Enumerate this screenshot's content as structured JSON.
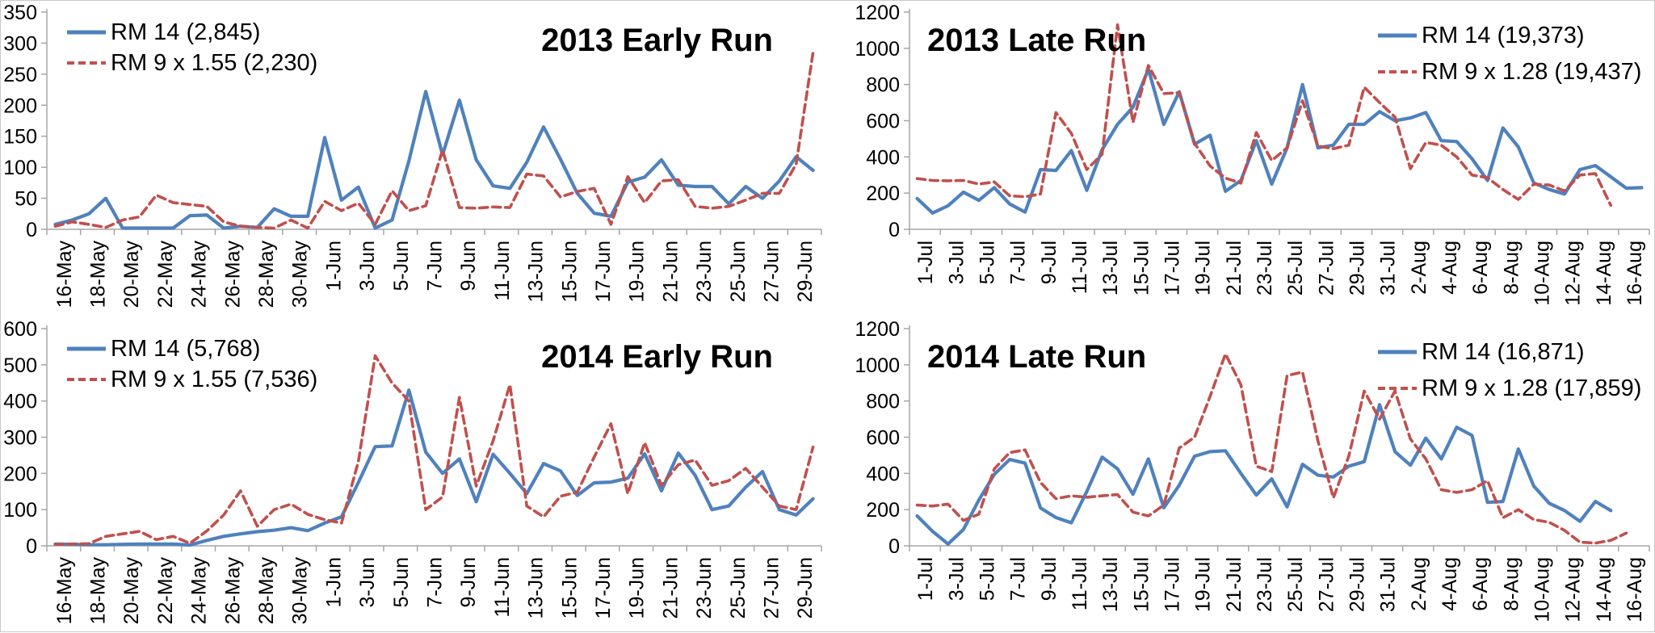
{
  "colors": {
    "rm14": "#4F81BD",
    "rm9": "#C0504D",
    "axis": "#A6A6A6",
    "text": "#000000",
    "background": "#FFFFFF",
    "page_border": "#C9C9C9"
  },
  "chart_data": [
    {
      "id": "chart-2013-early",
      "type": "line",
      "title": "2013 Early Run",
      "title_position": "top-right",
      "legend_position": "top-left",
      "grid": "off",
      "y_axis": {
        "min": 0,
        "max": 350,
        "step": 50
      },
      "x_tick_interval": 2,
      "x": [
        "16-May",
        "17-May",
        "18-May",
        "19-May",
        "20-May",
        "21-May",
        "22-May",
        "23-May",
        "24-May",
        "25-May",
        "26-May",
        "27-May",
        "28-May",
        "29-May",
        "30-May",
        "31-May",
        "1-Jun",
        "2-Jun",
        "3-Jun",
        "4-Jun",
        "5-Jun",
        "6-Jun",
        "7-Jun",
        "8-Jun",
        "9-Jun",
        "10-Jun",
        "11-Jun",
        "12-Jun",
        "13-Jun",
        "14-Jun",
        "15-Jun",
        "16-Jun",
        "17-Jun",
        "18-Jun",
        "19-Jun",
        "20-Jun",
        "21-Jun",
        "22-Jun",
        "23-Jun",
        "24-Jun",
        "25-Jun",
        "26-Jun",
        "27-Jun",
        "28-Jun",
        "29-Jun",
        "30-Jun"
      ],
      "series": [
        {
          "key": "rm14",
          "name": "RM 14 (2,845)",
          "style": "solid",
          "values": [
            8,
            15,
            25,
            50,
            2,
            2,
            2,
            2,
            22,
            23,
            2,
            5,
            3,
            33,
            21,
            21,
            148,
            47,
            68,
            2,
            15,
            110,
            222,
            120,
            208,
            112,
            70,
            66,
            108,
            165,
            113,
            58,
            26,
            21,
            76,
            84,
            112,
            71,
            69,
            69,
            41,
            69,
            50,
            78,
            117,
            95
          ]
        },
        {
          "key": "rm9",
          "name": "RM 9 x 1.55 (2,230)",
          "style": "dashed",
          "values": [
            5,
            12,
            8,
            3,
            15,
            20,
            55,
            43,
            40,
            37,
            12,
            5,
            3,
            2,
            15,
            2,
            45,
            30,
            42,
            8,
            62,
            30,
            38,
            128,
            35,
            34,
            36,
            35,
            89,
            86,
            52,
            61,
            66,
            8,
            85,
            43,
            78,
            80,
            37,
            34,
            37,
            47,
            58,
            58,
            105,
            285
          ]
        }
      ]
    },
    {
      "id": "chart-2013-late",
      "type": "line",
      "title": "2013 Late Run",
      "title_position": "top-left",
      "legend_position": "top-right",
      "grid": "off",
      "y_axis": {
        "min": 0,
        "max": 1200,
        "step": 200
      },
      "x_tick_interval": 2,
      "x": [
        "1-Jul",
        "2-Jul",
        "3-Jul",
        "4-Jul",
        "5-Jul",
        "6-Jul",
        "7-Jul",
        "8-Jul",
        "9-Jul",
        "10-Jul",
        "11-Jul",
        "12-Jul",
        "13-Jul",
        "14-Jul",
        "15-Jul",
        "16-Jul",
        "17-Jul",
        "18-Jul",
        "19-Jul",
        "20-Jul",
        "21-Jul",
        "22-Jul",
        "23-Jul",
        "24-Jul",
        "25-Jul",
        "26-Jul",
        "27-Jul",
        "28-Jul",
        "29-Jul",
        "30-Jul",
        "31-Jul",
        "1-Aug",
        "2-Aug",
        "3-Aug",
        "4-Aug",
        "5-Aug",
        "6-Aug",
        "7-Aug",
        "8-Aug",
        "9-Aug",
        "10-Aug",
        "11-Aug",
        "12-Aug",
        "13-Aug",
        "14-Aug",
        "15-Aug",
        "16-Aug",
        "17-Aug"
      ],
      "series": [
        {
          "key": "rm14",
          "name": "RM 14 (19,373)",
          "style": "solid",
          "values": [
            170,
            90,
            130,
            205,
            160,
            230,
            140,
            95,
            330,
            325,
            435,
            215,
            440,
            580,
            675,
            885,
            580,
            760,
            470,
            520,
            210,
            270,
            490,
            250,
            450,
            800,
            450,
            465,
            580,
            580,
            650,
            600,
            615,
            645,
            490,
            485,
            390,
            270,
            560,
            455,
            256,
            220,
            195,
            330,
            352,
            290,
            227,
            230
          ]
        },
        {
          "key": "rm9",
          "name": "RM 9 x 1.28 (19,437)",
          "style": "dashed",
          "values": [
            280,
            270,
            268,
            270,
            250,
            262,
            185,
            180,
            195,
            645,
            530,
            330,
            415,
            1130,
            590,
            905,
            750,
            755,
            475,
            350,
            283,
            255,
            535,
            380,
            450,
            710,
            460,
            445,
            465,
            785,
            700,
            620,
            335,
            480,
            465,
            400,
            300,
            285,
            220,
            165,
            249,
            245,
            212,
            300,
            308,
            132,
            null,
            null
          ]
        }
      ]
    },
    {
      "id": "chart-2014-early",
      "type": "line",
      "title": "2014 Early Run",
      "title_position": "top-right",
      "legend_position": "top-left",
      "grid": "off",
      "y_axis": {
        "min": 0,
        "max": 600,
        "step": 100
      },
      "x_tick_interval": 2,
      "x": [
        "16-May",
        "17-May",
        "18-May",
        "19-May",
        "20-May",
        "21-May",
        "22-May",
        "23-May",
        "24-May",
        "25-May",
        "26-May",
        "27-May",
        "28-May",
        "29-May",
        "30-May",
        "31-May",
        "1-Jun",
        "2-Jun",
        "3-Jun",
        "4-Jun",
        "5-Jun",
        "6-Jun",
        "7-Jun",
        "8-Jun",
        "9-Jun",
        "10-Jun",
        "11-Jun",
        "12-Jun",
        "13-Jun",
        "14-Jun",
        "15-Jun",
        "16-Jun",
        "17-Jun",
        "18-Jun",
        "19-Jun",
        "20-Jun",
        "21-Jun",
        "22-Jun",
        "23-Jun",
        "24-Jun",
        "25-Jun",
        "26-Jun",
        "27-Jun",
        "28-Jun",
        "29-Jun",
        "30-Jun"
      ],
      "series": [
        {
          "key": "rm14",
          "name": "RM 14 (5,768)",
          "style": "solid",
          "values": [
            5,
            4,
            3,
            3,
            4,
            5,
            5,
            5,
            2,
            15,
            26,
            33,
            39,
            43,
            50,
            42,
            63,
            80,
            175,
            274,
            276,
            430,
            259,
            200,
            240,
            122,
            253,
            200,
            144,
            227,
            207,
            139,
            174,
            176,
            187,
            254,
            152,
            256,
            195,
            100,
            110,
            162,
            205,
            100,
            85,
            130
          ]
        },
        {
          "key": "rm9",
          "name": "RM 9 x 1.55 (7,536)",
          "style": "dashed",
          "values": [
            4,
            5,
            6,
            26,
            33,
            40,
            17,
            26,
            7,
            41,
            85,
            152,
            54,
            100,
            115,
            87,
            72,
            63,
            233,
            525,
            450,
            400,
            100,
            135,
            410,
            165,
            290,
            445,
            110,
            80,
            137,
            148,
            245,
            337,
            144,
            285,
            167,
            224,
            237,
            167,
            180,
            214,
            162,
            110,
            100,
            273
          ]
        }
      ]
    },
    {
      "id": "chart-2014-late",
      "type": "line",
      "title": "2014 Late Run",
      "title_position": "top-left",
      "legend_position": "top-right",
      "grid": "off",
      "y_axis": {
        "min": 0,
        "max": 1200,
        "step": 200
      },
      "x_tick_interval": 2,
      "x": [
        "1-Jul",
        "2-Jul",
        "3-Jul",
        "4-Jul",
        "5-Jul",
        "6-Jul",
        "7-Jul",
        "8-Jul",
        "9-Jul",
        "10-Jul",
        "11-Jul",
        "12-Jul",
        "13-Jul",
        "14-Jul",
        "15-Jul",
        "16-Jul",
        "17-Jul",
        "18-Jul",
        "19-Jul",
        "20-Jul",
        "21-Jul",
        "22-Jul",
        "23-Jul",
        "24-Jul",
        "25-Jul",
        "26-Jul",
        "27-Jul",
        "28-Jul",
        "29-Jul",
        "30-Jul",
        "31-Jul",
        "1-Aug",
        "2-Aug",
        "3-Aug",
        "4-Aug",
        "5-Aug",
        "6-Aug",
        "7-Aug",
        "8-Aug",
        "9-Aug",
        "10-Aug",
        "11-Aug",
        "12-Aug",
        "13-Aug",
        "14-Aug",
        "15-Aug",
        "16-Aug",
        "17-Aug"
      ],
      "series": [
        {
          "key": "rm14",
          "name": "RM 14 (16,871)",
          "style": "solid",
          "values": [
            165,
            80,
            10,
            90,
            253,
            395,
            477,
            457,
            209,
            156,
            127,
            300,
            490,
            425,
            285,
            480,
            210,
            335,
            495,
            520,
            525,
            400,
            280,
            370,
            215,
            450,
            390,
            380,
            440,
            465,
            780,
            520,
            445,
            595,
            480,
            655,
            610,
            240,
            245,
            535,
            330,
            235,
            195,
            135,
            245,
            195,
            null,
            null
          ]
        },
        {
          "key": "rm9",
          "name": "RM 9 x 1.28 (17,859)",
          "style": "dashed",
          "values": [
            225,
            220,
            230,
            140,
            175,
            425,
            515,
            530,
            350,
            260,
            276,
            268,
            276,
            283,
            186,
            165,
            225,
            540,
            600,
            825,
            1060,
            890,
            440,
            410,
            940,
            960,
            580,
            265,
            495,
            855,
            700,
            855,
            590,
            480,
            310,
            295,
            310,
            360,
            155,
            200,
            145,
            130,
            85,
            20,
            15,
            30,
            70,
            null
          ]
        }
      ]
    }
  ]
}
